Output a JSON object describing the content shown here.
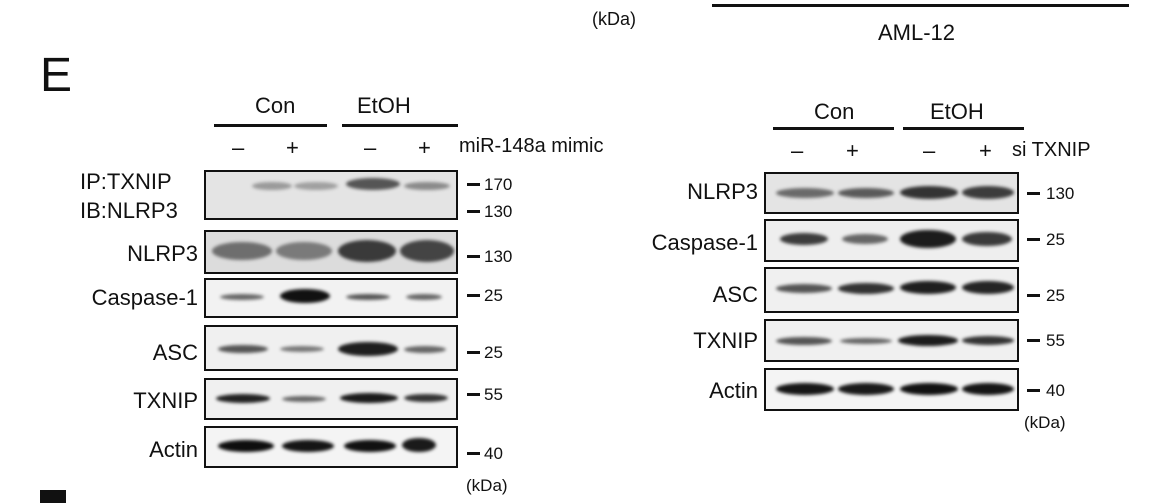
{
  "top": {
    "kda_label": "(kDa)",
    "cell_line": "AML-12"
  },
  "panel_letter": "E",
  "left_panel": {
    "groups": [
      "Con",
      "EtOH"
    ],
    "signs": [
      "–",
      "+",
      "–",
      "+"
    ],
    "treatment": "miR-148a mimic",
    "rows": [
      {
        "label": "IP:TXNIP",
        "label2": "IB:NLRP3",
        "markers": [
          "170",
          "130"
        ]
      },
      {
        "label": "NLRP3",
        "markers": [
          "130"
        ]
      },
      {
        "label": "Caspase-1",
        "markers": [
          "25"
        ]
      },
      {
        "label": "ASC",
        "markers": [
          "25"
        ]
      },
      {
        "label": "TXNIP",
        "markers": [
          "55"
        ]
      },
      {
        "label": "Actin",
        "markers": [
          "40"
        ]
      }
    ],
    "unit": "(kDa)"
  },
  "right_panel": {
    "groups": [
      "Con",
      "EtOH"
    ],
    "signs": [
      "–",
      "+",
      "–",
      "+"
    ],
    "treatment": "si TXNIP",
    "rows": [
      {
        "label": "NLRP3",
        "markers": [
          "130"
        ]
      },
      {
        "label": "Caspase-1",
        "markers": [
          "25"
        ]
      },
      {
        "label": "ASC",
        "markers": [
          "25"
        ]
      },
      {
        "label": "TXNIP",
        "markers": [
          "55"
        ]
      },
      {
        "label": "Actin",
        "markers": [
          "40"
        ]
      }
    ],
    "unit": "(kDa)"
  }
}
